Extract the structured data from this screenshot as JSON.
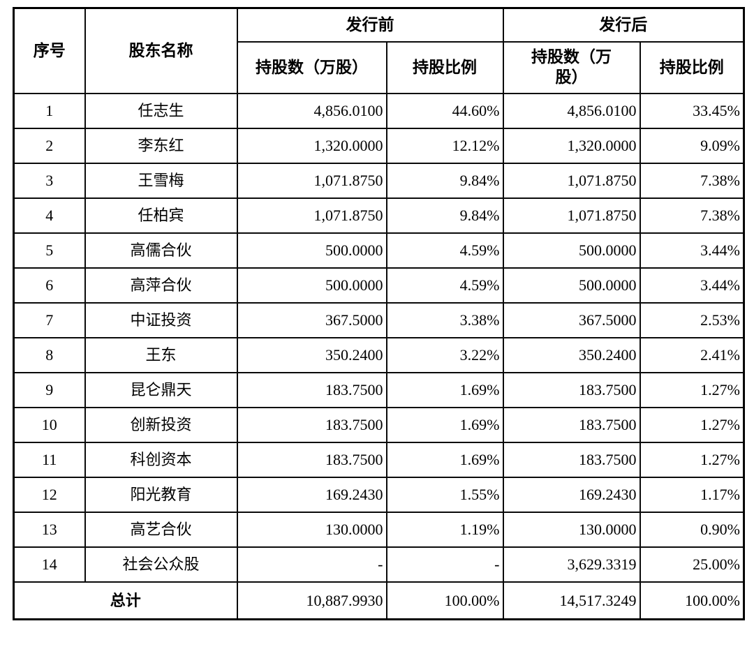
{
  "table": {
    "header": {
      "col_no": "序号",
      "col_name": "股东名称",
      "group_pre": "发行前",
      "group_post": "发行后",
      "col_shares_pre": "持股数（万股）",
      "col_ratio_pre": "持股比例",
      "col_shares_post": "持股数（万\n股）",
      "col_ratio_post": "持股比例"
    },
    "rows": [
      {
        "no": "1",
        "name": "任志生",
        "shares_pre": "4,856.0100",
        "ratio_pre": "44.60%",
        "shares_post": "4,856.0100",
        "ratio_post": "33.45%"
      },
      {
        "no": "2",
        "name": "李东红",
        "shares_pre": "1,320.0000",
        "ratio_pre": "12.12%",
        "shares_post": "1,320.0000",
        "ratio_post": "9.09%"
      },
      {
        "no": "3",
        "name": "王雪梅",
        "shares_pre": "1,071.8750",
        "ratio_pre": "9.84%",
        "shares_post": "1,071.8750",
        "ratio_post": "7.38%"
      },
      {
        "no": "4",
        "name": "任柏宾",
        "shares_pre": "1,071.8750",
        "ratio_pre": "9.84%",
        "shares_post": "1,071.8750",
        "ratio_post": "7.38%"
      },
      {
        "no": "5",
        "name": "高儒合伙",
        "shares_pre": "500.0000",
        "ratio_pre": "4.59%",
        "shares_post": "500.0000",
        "ratio_post": "3.44%"
      },
      {
        "no": "6",
        "name": "高萍合伙",
        "shares_pre": "500.0000",
        "ratio_pre": "4.59%",
        "shares_post": "500.0000",
        "ratio_post": "3.44%"
      },
      {
        "no": "7",
        "name": "中证投资",
        "shares_pre": "367.5000",
        "ratio_pre": "3.38%",
        "shares_post": "367.5000",
        "ratio_post": "2.53%"
      },
      {
        "no": "8",
        "name": "王东",
        "shares_pre": "350.2400",
        "ratio_pre": "3.22%",
        "shares_post": "350.2400",
        "ratio_post": "2.41%"
      },
      {
        "no": "9",
        "name": "昆仑鼎天",
        "shares_pre": "183.7500",
        "ratio_pre": "1.69%",
        "shares_post": "183.7500",
        "ratio_post": "1.27%"
      },
      {
        "no": "10",
        "name": "创新投资",
        "shares_pre": "183.7500",
        "ratio_pre": "1.69%",
        "shares_post": "183.7500",
        "ratio_post": "1.27%"
      },
      {
        "no": "11",
        "name": "科创资本",
        "shares_pre": "183.7500",
        "ratio_pre": "1.69%",
        "shares_post": "183.7500",
        "ratio_post": "1.27%"
      },
      {
        "no": "12",
        "name": "阳光教育",
        "shares_pre": "169.2430",
        "ratio_pre": "1.55%",
        "shares_post": "169.2430",
        "ratio_post": "1.17%"
      },
      {
        "no": "13",
        "name": "高艺合伙",
        "shares_pre": "130.0000",
        "ratio_pre": "1.19%",
        "shares_post": "130.0000",
        "ratio_post": "0.90%"
      },
      {
        "no": "14",
        "name": "社会公众股",
        "shares_pre": "-",
        "ratio_pre": "-",
        "shares_post": "3,629.3319",
        "ratio_post": "25.00%"
      }
    ],
    "total": {
      "label": "总计",
      "shares_pre": "10,887.9930",
      "ratio_pre": "100.00%",
      "shares_post": "14,517.3249",
      "ratio_post": "100.00%"
    }
  }
}
